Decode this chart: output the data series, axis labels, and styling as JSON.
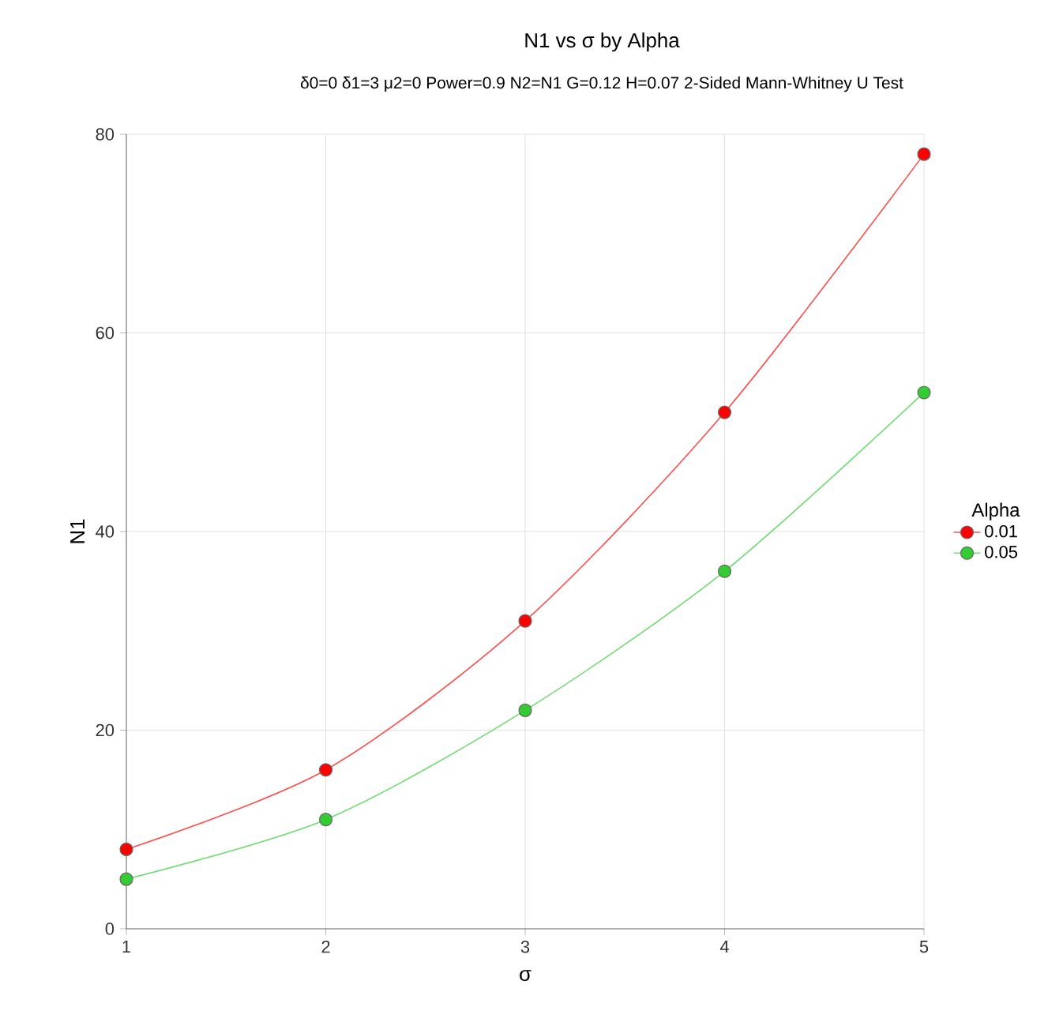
{
  "chart_data": {
    "type": "line",
    "title": "N1 vs σ by Alpha",
    "subtitle": "δ0=0 δ1=3 μ2=0 Power=0.9 N2=N1 G=0.12 H=0.07 2-Sided Mann-Whitney U Test",
    "xlabel": "σ",
    "ylabel": "N1",
    "legend_title": "Alpha",
    "x": [
      1,
      2,
      3,
      4,
      5
    ],
    "series": [
      {
        "name": "0.01",
        "color": "#ff0000",
        "values": [
          8,
          16,
          31,
          52,
          78
        ]
      },
      {
        "name": "0.05",
        "color": "#33cc33",
        "values": [
          5,
          11,
          22,
          36,
          54
        ]
      }
    ],
    "xlim": [
      1,
      5
    ],
    "ylim": [
      0,
      80
    ],
    "xticks": [
      1,
      2,
      3,
      4,
      5
    ],
    "yticks": [
      0,
      20,
      40,
      60,
      80
    ],
    "grid": true,
    "legend": "right",
    "marker": "circle",
    "line_style": "solid"
  }
}
